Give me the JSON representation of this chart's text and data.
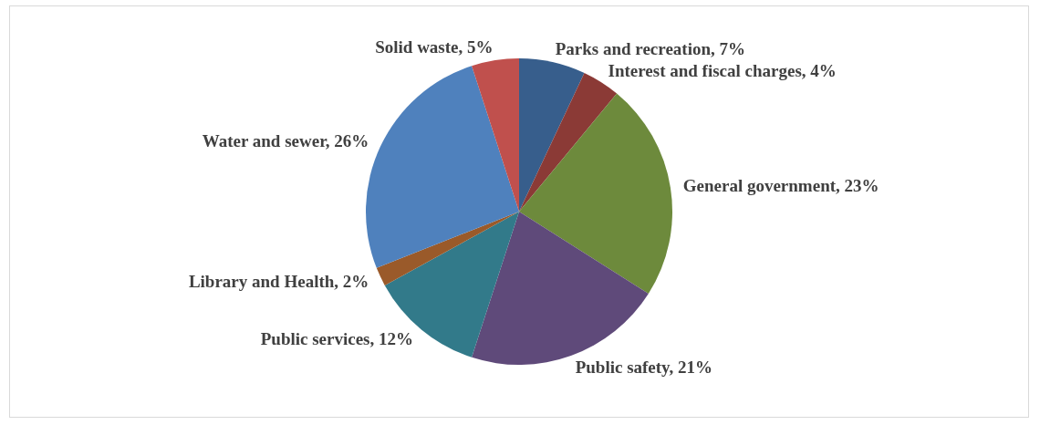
{
  "chart_data": {
    "type": "pie",
    "categories": [
      "Parks and recreation",
      "Interest and fiscal charges",
      "General government",
      "Public safety",
      "Public services",
      "Library and Health",
      "Water and sewer",
      "Solid waste"
    ],
    "values": [
      7,
      4,
      23,
      21,
      12,
      2,
      26,
      5
    ],
    "value_labels": [
      "7%",
      "4%",
      "23%",
      "21%",
      "12%",
      "2%",
      "26%",
      "5%"
    ],
    "colors": [
      "#375e8c",
      "#8b3a36",
      "#6d8a3c",
      "#5f4a7a",
      "#327a8a",
      "#9a5a2a",
      "#4f81bd",
      "#c0504d"
    ]
  }
}
